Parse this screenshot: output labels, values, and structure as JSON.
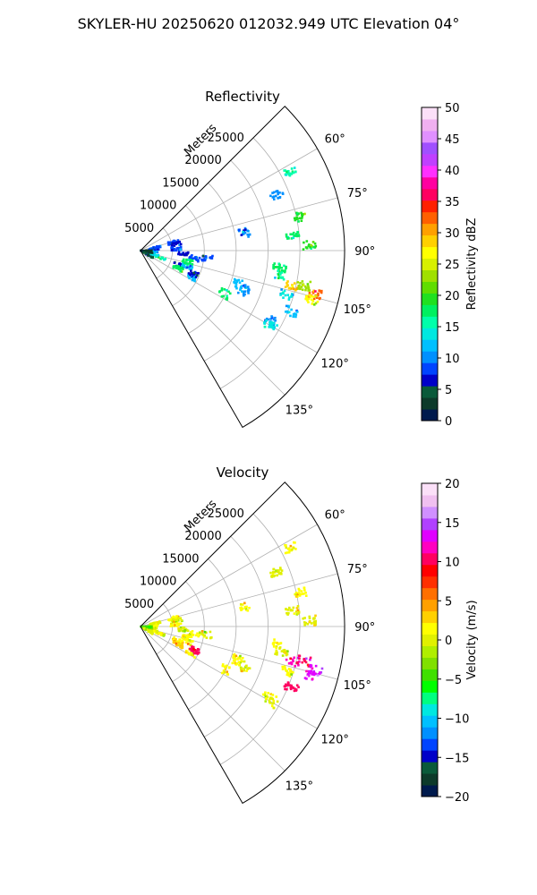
{
  "figure": {
    "title": "SKYLER-HU  20250620  012032.949 UTC Elevation 04°"
  },
  "chart_data": [
    {
      "type": "heatmap",
      "projection": "polar-sector",
      "title": "Reflectivity",
      "range_label": "Meters",
      "range_ticks": [
        5000,
        10000,
        15000,
        20000,
        25000
      ],
      "range_tick_labels": [
        "5000",
        "10000",
        "15000",
        "20000",
        "25000"
      ],
      "rlim": [
        0,
        32000
      ],
      "angle_range_deg": [
        45,
        150
      ],
      "angle_ticks": [
        60,
        75,
        90,
        105,
        120,
        135
      ],
      "angle_tick_labels": [
        "60°",
        "75°",
        "90°",
        "105°",
        "120°",
        "135°"
      ],
      "grid": true,
      "colorbar": {
        "label": "Reflectivity dBZ",
        "range": [
          0,
          50
        ],
        "ticks": [
          "0",
          "5",
          "10",
          "15",
          "20",
          "25",
          "30",
          "35",
          "40",
          "45",
          "50"
        ]
      },
      "echoes": [
        {
          "az": 62,
          "r": 26500,
          "value": 15
        },
        {
          "az": 68,
          "r": 23000,
          "value": 10
        },
        {
          "az": 78,
          "r": 25500,
          "value": 20
        },
        {
          "az": 84,
          "r": 24000,
          "value": 17
        },
        {
          "az": 88,
          "r": 26500,
          "value": 20
        },
        {
          "az": 80,
          "r": 16500,
          "value": 10
        },
        {
          "az": 97,
          "r": 22000,
          "value": 18
        },
        {
          "az": 100,
          "r": 22500,
          "value": 16
        },
        {
          "az": 103,
          "r": 24500,
          "value": 28
        },
        {
          "az": 102,
          "r": 26200,
          "value": 24
        },
        {
          "az": 104,
          "r": 28200,
          "value": 33
        },
        {
          "az": 106,
          "r": 28000,
          "value": 26
        },
        {
          "az": 107,
          "r": 24000,
          "value": 14
        },
        {
          "az": 112,
          "r": 25500,
          "value": 12
        },
        {
          "az": 118,
          "r": 23000,
          "value": 10
        },
        {
          "az": 120,
          "r": 23500,
          "value": 14
        },
        {
          "az": 111,
          "r": 17500,
          "value": 11
        },
        {
          "az": 109,
          "r": 16000,
          "value": 12
        },
        {
          "az": 117,
          "r": 14800,
          "value": 17
        },
        {
          "az": 76,
          "r": 5300,
          "value": 8
        },
        {
          "az": 80,
          "r": 5800,
          "value": 7
        },
        {
          "az": 87,
          "r": 5600,
          "value": 9
        },
        {
          "az": 94,
          "r": 6800,
          "value": 6
        },
        {
          "az": 98,
          "r": 8500,
          "value": 9
        },
        {
          "az": 97,
          "r": 10500,
          "value": 8
        },
        {
          "az": 111,
          "r": 6300,
          "value": 7
        },
        {
          "az": 108,
          "r": 7800,
          "value": 12
        },
        {
          "az": 103,
          "r": 7600,
          "value": 17
        },
        {
          "az": 115,
          "r": 6600,
          "value": 18
        },
        {
          "az": 117,
          "r": 9000,
          "value": 12
        },
        {
          "az": 114,
          "r": 9200,
          "value": 6
        },
        {
          "az": 110,
          "r": 3300,
          "value": 16
        },
        {
          "az": 107,
          "r": 2100,
          "value": 13
        },
        {
          "az": 95,
          "r": 1800,
          "value": 12
        },
        {
          "az": 85,
          "r": 2000,
          "value": 9
        },
        {
          "az": 78,
          "r": 2400,
          "value": 9
        },
        {
          "az": 100,
          "r": 1100,
          "value": 3
        },
        {
          "az": 92,
          "r": 900,
          "value": 2
        },
        {
          "az": 120,
          "r": 1400,
          "value": 5
        }
      ]
    },
    {
      "type": "heatmap",
      "projection": "polar-sector",
      "title": "Velocity",
      "range_label": "Meters",
      "range_ticks": [
        5000,
        10000,
        15000,
        20000,
        25000
      ],
      "range_tick_labels": [
        "5000",
        "10000",
        "15000",
        "20000",
        "25000"
      ],
      "rlim": [
        0,
        32000
      ],
      "angle_range_deg": [
        45,
        150
      ],
      "angle_ticks": [
        60,
        75,
        90,
        105,
        120,
        135
      ],
      "angle_tick_labels": [
        "60°",
        "75°",
        "90°",
        "105°",
        "120°",
        "135°"
      ],
      "grid": true,
      "colorbar": {
        "label": "Velocity (m/s)",
        "range": [
          -20,
          20
        ],
        "ticks": [
          "−20",
          "−15",
          "−10",
          "−5",
          "0",
          "5",
          "10",
          "15",
          "20"
        ]
      },
      "echoes": [
        {
          "az": 62,
          "r": 26500,
          "value": 1
        },
        {
          "az": 68,
          "r": 23000,
          "value": 0
        },
        {
          "az": 78,
          "r": 25500,
          "value": 1
        },
        {
          "az": 84,
          "r": 24000,
          "value": 0
        },
        {
          "az": 88,
          "r": 26500,
          "value": 0
        },
        {
          "az": 80,
          "r": 16500,
          "value": 1
        },
        {
          "az": 97,
          "r": 22000,
          "value": 1
        },
        {
          "az": 100,
          "r": 22500,
          "value": 0
        },
        {
          "az": 103,
          "r": 24500,
          "value": 12
        },
        {
          "az": 102,
          "r": 26200,
          "value": 11
        },
        {
          "az": 104,
          "r": 28200,
          "value": 13
        },
        {
          "az": 106,
          "r": 28000,
          "value": 14
        },
        {
          "az": 107,
          "r": 24000,
          "value": 1
        },
        {
          "az": 112,
          "r": 25500,
          "value": 11
        },
        {
          "az": 118,
          "r": 23000,
          "value": 1
        },
        {
          "az": 120,
          "r": 23500,
          "value": 0
        },
        {
          "az": 111,
          "r": 17500,
          "value": 0
        },
        {
          "az": 109,
          "r": 16000,
          "value": 1
        },
        {
          "az": 117,
          "r": 14800,
          "value": 1
        },
        {
          "az": 76,
          "r": 5300,
          "value": 1
        },
        {
          "az": 80,
          "r": 5800,
          "value": 0
        },
        {
          "az": 87,
          "r": 5600,
          "value": 1
        },
        {
          "az": 94,
          "r": 6800,
          "value": 0
        },
        {
          "az": 98,
          "r": 8500,
          "value": 1
        },
        {
          "az": 97,
          "r": 10500,
          "value": 0
        },
        {
          "az": 111,
          "r": 6300,
          "value": 2
        },
        {
          "az": 108,
          "r": 7800,
          "value": 2
        },
        {
          "az": 103,
          "r": 7600,
          "value": 1
        },
        {
          "az": 115,
          "r": 6600,
          "value": 3
        },
        {
          "az": 117,
          "r": 9000,
          "value": 1
        },
        {
          "az": 114,
          "r": 9200,
          "value": 11
        },
        {
          "az": 110,
          "r": 3300,
          "value": 1
        },
        {
          "az": 107,
          "r": 2100,
          "value": 0
        },
        {
          "az": 95,
          "r": 1800,
          "value": 0
        },
        {
          "az": 85,
          "r": 2000,
          "value": 1
        },
        {
          "az": 78,
          "r": 2400,
          "value": 0
        },
        {
          "az": 100,
          "r": 1100,
          "value": -3
        },
        {
          "az": 92,
          "r": 900,
          "value": -4
        },
        {
          "az": 120,
          "r": 1400,
          "value": 0
        }
      ]
    }
  ]
}
